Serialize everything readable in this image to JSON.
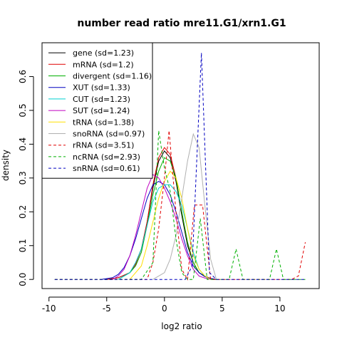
{
  "chart_data": {
    "type": "line",
    "title": "number read ratio mre11.G1/xrn1.G1",
    "xlabel": "log2 ratio",
    "ylabel": "density",
    "xlim": [
      -10.6,
      13.4
    ],
    "ylim": [
      -0.027,
      0.7
    ],
    "x_ticks": [
      -10,
      -5,
      0,
      5,
      10
    ],
    "x_tick_labels": [
      "-10",
      "-5",
      "0",
      "5",
      "10"
    ],
    "y_ticks": [
      0.0,
      0.1,
      0.2,
      0.3,
      0.4,
      0.5,
      0.6
    ],
    "y_tick_labels": [
      "0.0",
      "0.1",
      "0.2",
      "0.3",
      "0.4",
      "0.5",
      "0.6"
    ],
    "grid": false,
    "legend_position": "top-left",
    "series": [
      {
        "name": "gene (sd=1.23)",
        "color": "#000000",
        "dash": "solid",
        "x": [
          -5,
          -4,
          -3,
          -2.5,
          -2,
          -1.5,
          -1,
          -0.5,
          0,
          0.5,
          1,
          1.5,
          2,
          2.5,
          3,
          3.5,
          4,
          4.5
        ],
        "y": [
          0,
          0.005,
          0.02,
          0.045,
          0.09,
          0.17,
          0.27,
          0.35,
          0.38,
          0.36,
          0.29,
          0.19,
          0.1,
          0.05,
          0.02,
          0.01,
          0.003,
          0
        ]
      },
      {
        "name": "mRNA (sd=1.2)",
        "color": "#e00000",
        "dash": "solid",
        "x": [
          -5,
          -4,
          -3,
          -2.5,
          -2,
          -1.5,
          -1,
          -0.5,
          0,
          0.5,
          1,
          1.5,
          2,
          2.5,
          3,
          3.5,
          4,
          4.5
        ],
        "y": [
          0,
          0.005,
          0.02,
          0.045,
          0.09,
          0.17,
          0.28,
          0.36,
          0.39,
          0.37,
          0.3,
          0.2,
          0.11,
          0.05,
          0.02,
          0.01,
          0.003,
          0
        ]
      },
      {
        "name": "divergent (sd=1.16)",
        "color": "#00b000",
        "dash": "solid",
        "x": [
          -4,
          -3,
          -2.5,
          -2,
          -1.5,
          -1,
          -0.5,
          0,
          0.5,
          1,
          1.5,
          2,
          2.5,
          3,
          3.5,
          4
        ],
        "y": [
          0,
          0.02,
          0.04,
          0.08,
          0.16,
          0.25,
          0.32,
          0.36,
          0.35,
          0.3,
          0.2,
          0.11,
          0.05,
          0.02,
          0.01,
          0
        ]
      },
      {
        "name": "XUT (sd=1.33)",
        "color": "#0000c0",
        "dash": "solid",
        "x": [
          -5.5,
          -4.5,
          -4,
          -3.5,
          -3,
          -2.5,
          -2,
          -1.5,
          -1,
          -0.5,
          0,
          0.5,
          1,
          1.5,
          2,
          2.5,
          3,
          3.5,
          4,
          4.5
        ],
        "y": [
          0,
          0.005,
          0.015,
          0.035,
          0.07,
          0.12,
          0.18,
          0.24,
          0.28,
          0.29,
          0.28,
          0.25,
          0.2,
          0.14,
          0.08,
          0.04,
          0.02,
          0.008,
          0.003,
          0
        ]
      },
      {
        "name": "CUT (sd=1.23)",
        "color": "#00d0d0",
        "dash": "solid",
        "x": [
          -4,
          -3,
          -2.5,
          -2,
          -1.5,
          -1,
          -0.5,
          0,
          0.5,
          1,
          1.5,
          2,
          2.5,
          3,
          3.5,
          4
        ],
        "y": [
          0,
          0.02,
          0.05,
          0.09,
          0.16,
          0.23,
          0.27,
          0.28,
          0.28,
          0.26,
          0.22,
          0.15,
          0.08,
          0.03,
          0.01,
          0
        ]
      },
      {
        "name": "SUT (sd=1.24)",
        "color": "#c000c0",
        "dash": "solid",
        "x": [
          -4.5,
          -4,
          -3.5,
          -3,
          -2.5,
          -2,
          -1.5,
          -1,
          -0.5,
          0,
          0.5,
          1,
          1.5,
          2,
          2.5,
          3,
          3.5,
          4
        ],
        "y": [
          0,
          0.01,
          0.03,
          0.07,
          0.13,
          0.2,
          0.27,
          0.31,
          0.3,
          0.27,
          0.23,
          0.18,
          0.12,
          0.07,
          0.03,
          0.01,
          0.004,
          0
        ]
      },
      {
        "name": "tRNA (sd=1.38)",
        "color": "#ffe000",
        "dash": "solid",
        "x": [
          -3,
          -2,
          -1.5,
          -1,
          -0.5,
          0,
          0.5,
          1,
          1.5,
          2,
          2.5,
          3,
          3.5,
          4
        ],
        "y": [
          0,
          0.04,
          0.1,
          0.17,
          0.24,
          0.29,
          0.32,
          0.3,
          0.24,
          0.15,
          0.07,
          0.03,
          0.01,
          0
        ]
      },
      {
        "name": "snoRNA (sd=0.97)",
        "color": "#b0b0b0",
        "dash": "solid",
        "x": [
          -1,
          0,
          0.5,
          1,
          1.5,
          2,
          2.5,
          3,
          3.5,
          4,
          4.5
        ],
        "y": [
          0,
          0.02,
          0.06,
          0.13,
          0.24,
          0.35,
          0.43,
          0.39,
          0.22,
          0.06,
          0
        ]
      },
      {
        "name": "rRNA (sd=3.51)",
        "color": "#e00000",
        "dash": "dashed",
        "x": [
          -9.5,
          -5,
          -1.5,
          -1,
          -0.5,
          0,
          0.4,
          1,
          1.5,
          2,
          2.6,
          3.3,
          4,
          11,
          11.6,
          12.2
        ],
        "y": [
          0,
          0,
          0,
          0.05,
          0.15,
          0.3,
          0.44,
          0.2,
          0.03,
          0,
          0.22,
          0.22,
          0,
          0,
          0.01,
          0.11
        ]
      },
      {
        "name": "ncRNA (sd=2.93)",
        "color": "#00b000",
        "dash": "dashed",
        "x": [
          -9.5,
          -2,
          -1,
          -0.5,
          0,
          0.5,
          1,
          1.5,
          2,
          2.5,
          3.1,
          3.7,
          5,
          5.6,
          6.2,
          6.8,
          8.5,
          9.1,
          9.7,
          10.3,
          12.2
        ],
        "y": [
          0,
          0,
          0.05,
          0.44,
          0.33,
          0.26,
          0.12,
          0.02,
          0,
          0,
          0.18,
          0,
          0,
          0,
          0.09,
          0,
          0,
          0,
          0.09,
          0,
          0
        ]
      },
      {
        "name": "snRNA (sd=0.61)",
        "color": "#0000c0",
        "dash": "dashed",
        "x": [
          -9.5,
          1.8,
          2.4,
          3.2,
          3.9,
          4.5,
          12.2
        ],
        "y": [
          0,
          0,
          0.04,
          0.67,
          0.02,
          0,
          0
        ]
      }
    ]
  }
}
